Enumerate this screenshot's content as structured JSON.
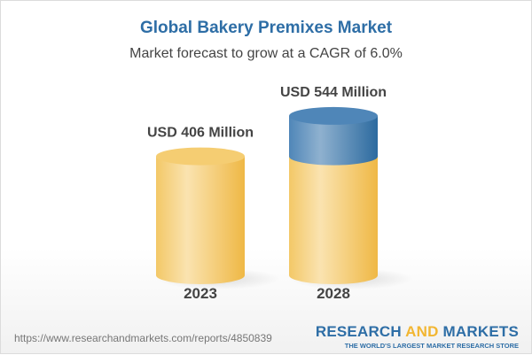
{
  "title": "Global Bakery Premixes Market",
  "subtitle": "Market forecast to grow at a CAGR of 6.0%",
  "footer": {
    "url": "https://www.researchandmarkets.com/reports/4850839",
    "logo_part1": "RESEARCH ",
    "logo_part2": "AND",
    "logo_part3": " MARKETS",
    "tagline": "THE WORLD'S LARGEST MARKET RESEARCH STORE"
  },
  "colors": {
    "base": "#f2c25a",
    "growth": "#3f7bb0",
    "title": "#2e6ea6",
    "logo_accent": "#f2b632"
  },
  "chart_data": {
    "type": "bar",
    "style": "3d-cylinder",
    "categories": [
      "2023",
      "2028"
    ],
    "values": [
      406,
      544
    ],
    "data_labels": [
      "USD 406 Million",
      "USD 544 Million"
    ],
    "unit": "USD Million",
    "cagr": "6.0%"
  }
}
